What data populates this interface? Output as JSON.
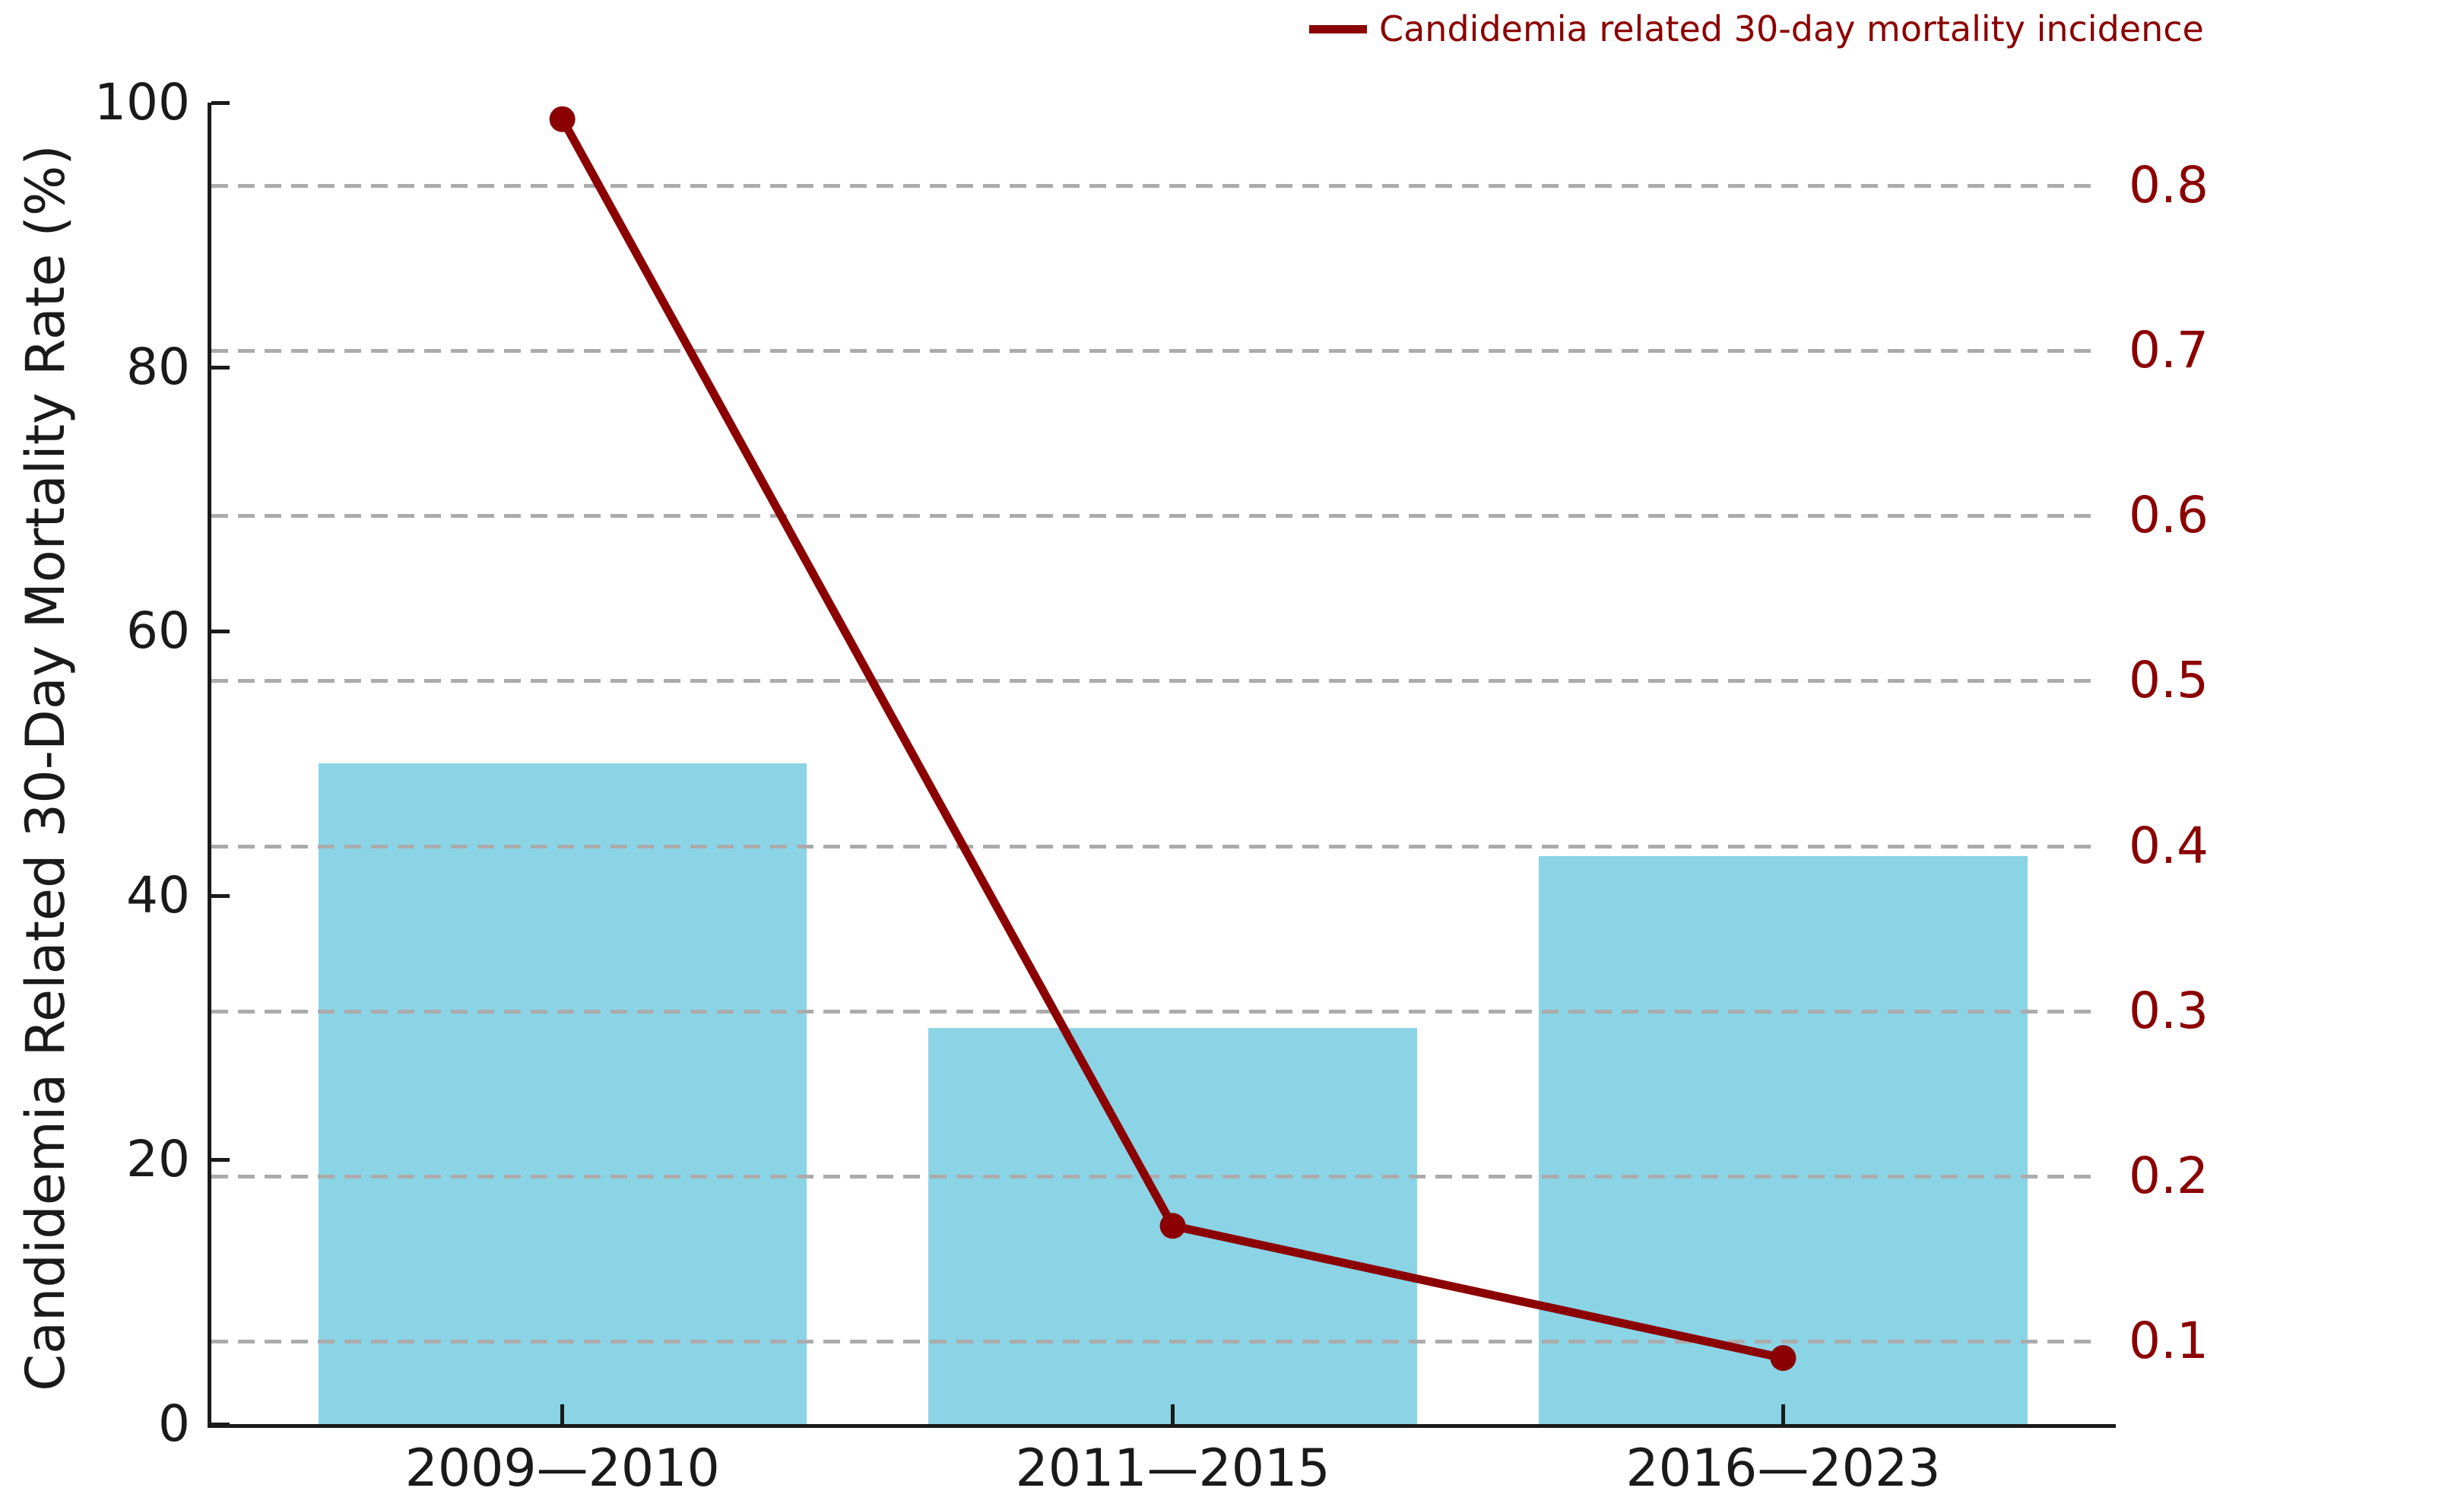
{
  "chart_data": {
    "type": "combo_bar_line",
    "categories": [
      "2009—2010",
      "2011—2015",
      "2016—2023"
    ],
    "series": [
      {
        "name": "Candidemia Related 30-Day Mortality Rate (%)",
        "type": "bar",
        "axis": "left",
        "values": [
          50,
          30,
          43
        ],
        "color": "#8bd4e6"
      },
      {
        "name": "Candidemia related 30-day mortality incidence",
        "type": "line",
        "axis": "right",
        "values": [
          0.84,
          0.17,
          0.09
        ],
        "color": "#8b0000",
        "marker": "circle"
      }
    ],
    "left_axis": {
      "label": "Candidemia Related 30-Day Mortality Rate (%)",
      "ticks": [
        0,
        20,
        40,
        60,
        80,
        100
      ],
      "range": [
        0,
        100
      ],
      "color": "#1a1a1a"
    },
    "right_axis": {
      "ticks": [
        0.1,
        0.2,
        0.3,
        0.4,
        0.5,
        0.6,
        0.7,
        0.8
      ],
      "range": [
        0.05,
        0.85
      ],
      "color": "#8b0000"
    },
    "grid": {
      "on": true,
      "style": "dashed",
      "color": "#ababab",
      "follows": "right_axis_ticks"
    },
    "legend": {
      "position": "upper right",
      "entries": [
        {
          "label": "Candidemia related 30-day mortality incidence",
          "color": "#8b0000"
        }
      ]
    }
  }
}
